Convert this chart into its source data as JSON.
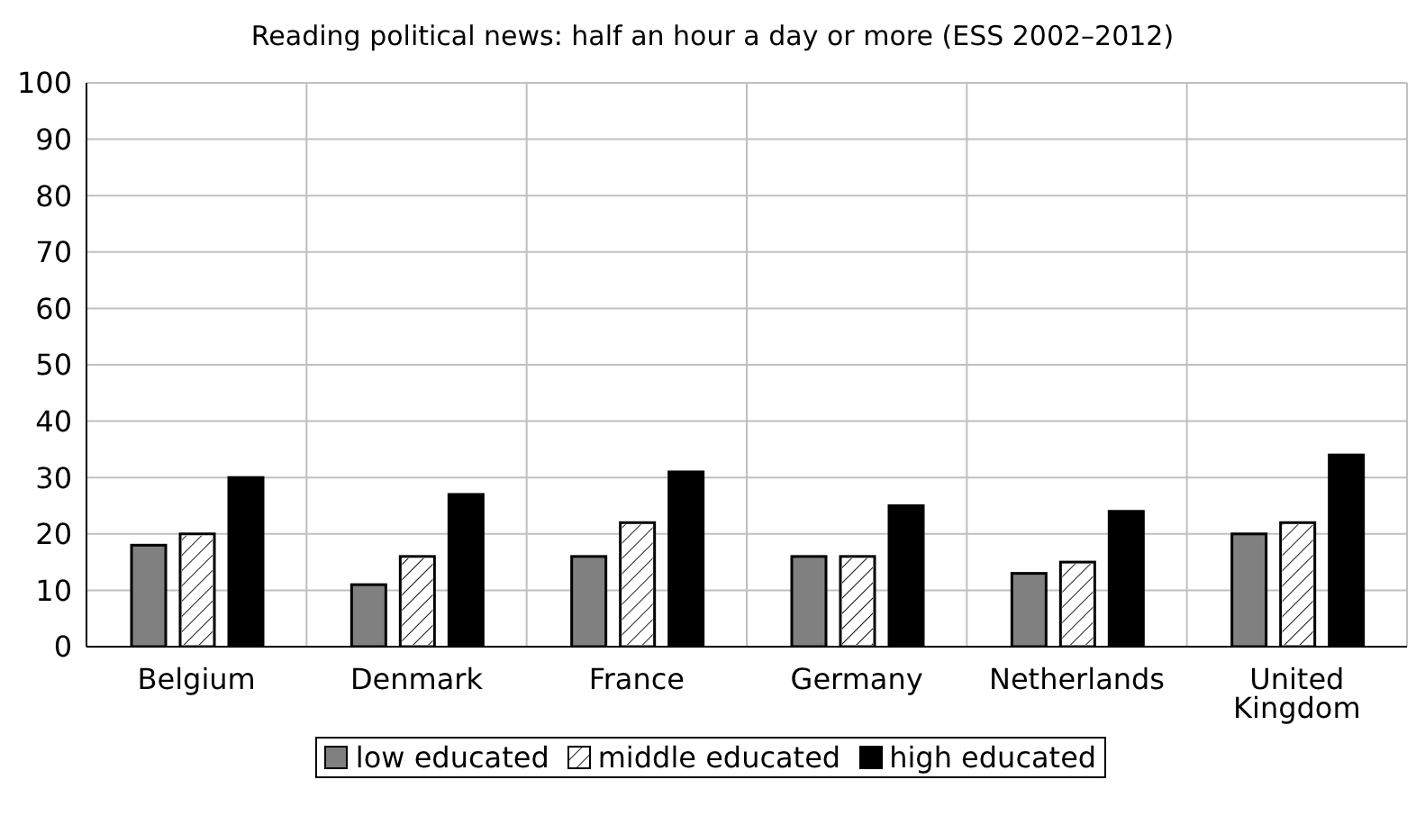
{
  "chart_data": {
    "type": "bar",
    "title": "Reading political news: half an hour a day or more (ESS 2002–2012)",
    "categories": [
      "Belgium",
      "Denmark",
      "France",
      "Germany",
      "Netherlands",
      "United Kingdom"
    ],
    "series": [
      {
        "name": "low educated",
        "color": "#808080",
        "values": [
          18,
          11,
          16,
          16,
          13,
          20
        ]
      },
      {
        "name": "middle educated",
        "color": "#ffffff",
        "values": [
          20,
          16,
          22,
          16,
          15,
          22
        ]
      },
      {
        "name": "high educated",
        "color": "#000000",
        "values": [
          30,
          27,
          31,
          25,
          24,
          34
        ]
      }
    ],
    "ylim": [
      0,
      100
    ],
    "yticks": [
      0,
      10,
      20,
      30,
      40,
      50,
      60,
      70,
      80,
      90,
      100
    ],
    "grid": true,
    "legend": "bottom"
  }
}
